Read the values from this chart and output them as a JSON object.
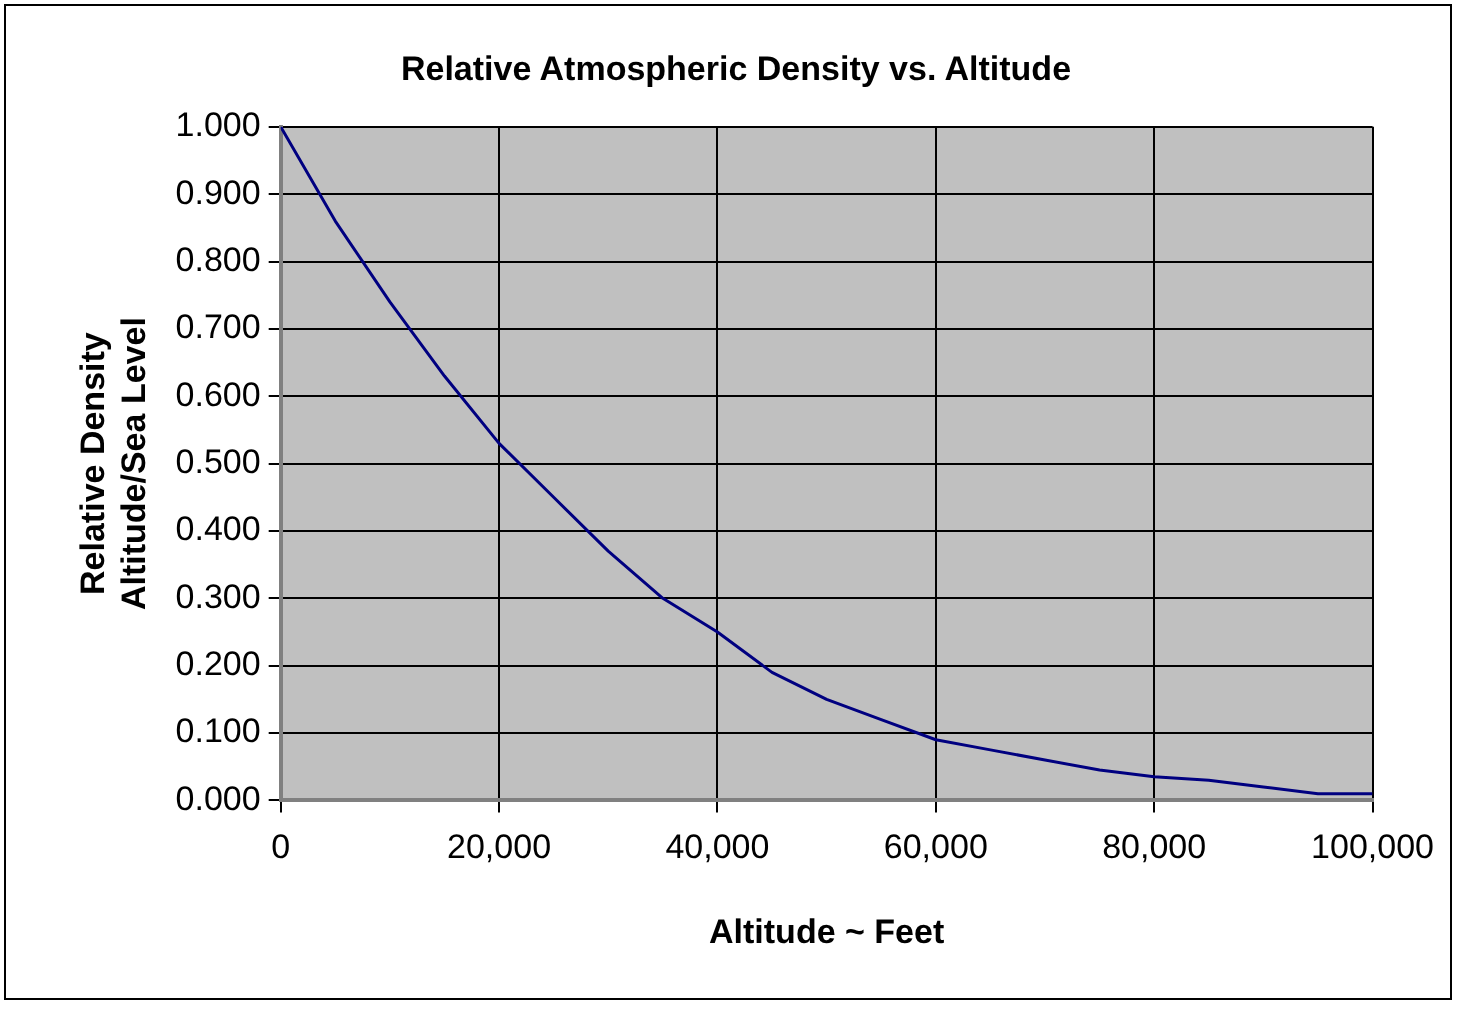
{
  "chart_data": {
    "type": "line",
    "title": "Relative Atmospheric Density vs. Altitude",
    "xlabel": "Altitude ~ Feet",
    "ylabel": "Relative Density\nAltitude/Sea Level",
    "series": [
      {
        "color": "#000080",
        "x": [
          0,
          5000,
          10000,
          15000,
          20000,
          25000,
          30000,
          35000,
          40000,
          45000,
          50000,
          55000,
          60000,
          65000,
          70000,
          75000,
          80000,
          85000,
          90000,
          95000,
          100000
        ],
        "values": [
          1.0,
          0.86,
          0.74,
          0.63,
          0.53,
          0.45,
          0.37,
          0.3,
          0.25,
          0.19,
          0.15,
          0.12,
          0.09,
          0.075,
          0.06,
          0.045,
          0.035,
          0.03,
          0.02,
          0.01,
          0.01
        ]
      }
    ],
    "xlim": [
      0,
      100000
    ],
    "xticks": [
      0,
      {
        "value": 20000,
        "label": "20,000"
      },
      {
        "value": 40000,
        "label": "40,000"
      },
      {
        "value": 60000,
        "label": "60,000"
      },
      {
        "value": 80000,
        "label": "80,000"
      },
      {
        "value": 100000,
        "label": "100,000"
      }
    ],
    "ylim": [
      0,
      1
    ],
    "yticks": [
      {
        "value": 0,
        "label": "0.000"
      },
      {
        "value": 0.1,
        "label": "0.100"
      },
      {
        "value": 0.2,
        "label": "0.200"
      },
      {
        "value": 0.3,
        "label": "0.300"
      },
      {
        "value": 0.4,
        "label": "0.400"
      },
      {
        "value": 0.5,
        "label": "0.500"
      },
      {
        "value": 0.6,
        "label": "0.600"
      },
      {
        "value": 0.7,
        "label": "0.700"
      },
      {
        "value": 0.8,
        "label": "0.800"
      },
      {
        "value": 0.9,
        "label": "0.900"
      },
      {
        "value": 1,
        "label": "1.000"
      }
    ],
    "grid": true,
    "legend": false,
    "marker": "none",
    "line_style": "solid"
  }
}
